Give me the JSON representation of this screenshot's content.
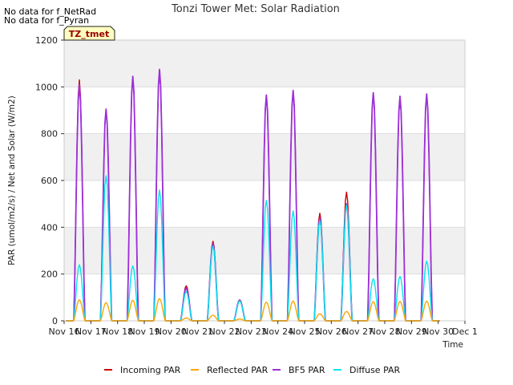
{
  "notes": [
    "No data for f_NetRad",
    "No data for f_Pyran"
  ],
  "chart_data": {
    "type": "line",
    "title": "Tonzi Tower Met: Solar Radiation",
    "xlabel": "Time",
    "ylabel": "PAR (umol/m2/s) / Net and Solar (W/m2)",
    "ylim": [
      0,
      1200
    ],
    "xlim": [
      0,
      15
    ],
    "yticks": [
      0,
      200,
      400,
      600,
      800,
      1000,
      1200
    ],
    "ytick_labels": [
      "0",
      "200",
      "400",
      "600",
      "800",
      "1000",
      "1200"
    ],
    "xticks": [
      0,
      1,
      2,
      3,
      4,
      5,
      6,
      7,
      8,
      9,
      10,
      11,
      12,
      13,
      14,
      15
    ],
    "xtick_labels": [
      "Nov 16",
      "Nov 17",
      "Nov 18",
      "Nov 19",
      "Nov 20",
      "Nov 21",
      "Nov 22",
      "Nov 23",
      "Nov 24",
      "Nov 25",
      "Nov 26",
      "Nov 27",
      "Nov 28",
      "Nov 29",
      "Nov 30",
      "Dec 1"
    ],
    "annotation": "TZ_tmet",
    "legend_position": "bottom",
    "series": [
      {
        "name": "Incoming PAR",
        "color": "#cc0000",
        "day_peaks": [
          1030,
          900,
          1040,
          1070,
          150,
          340,
          90,
          960,
          980,
          460,
          550,
          970,
          955,
          965
        ]
      },
      {
        "name": "Reflected PAR",
        "color": "#ffa500",
        "day_peaks": [
          90,
          78,
          88,
          95,
          12,
          24,
          8,
          80,
          85,
          30,
          40,
          82,
          83,
          84
        ]
      },
      {
        "name": "BF5 PAR",
        "color": "#9b30d9",
        "day_peaks": [
          1010,
          905,
          1045,
          1075,
          140,
          330,
          88,
          965,
          985,
          440,
          500,
          975,
          960,
          970
        ]
      },
      {
        "name": "Diffuse PAR",
        "color": "#00e5ee",
        "day_peaks": [
          240,
          620,
          235,
          560,
          125,
          320,
          85,
          515,
          470,
          430,
          495,
          180,
          190,
          255
        ]
      }
    ]
  }
}
